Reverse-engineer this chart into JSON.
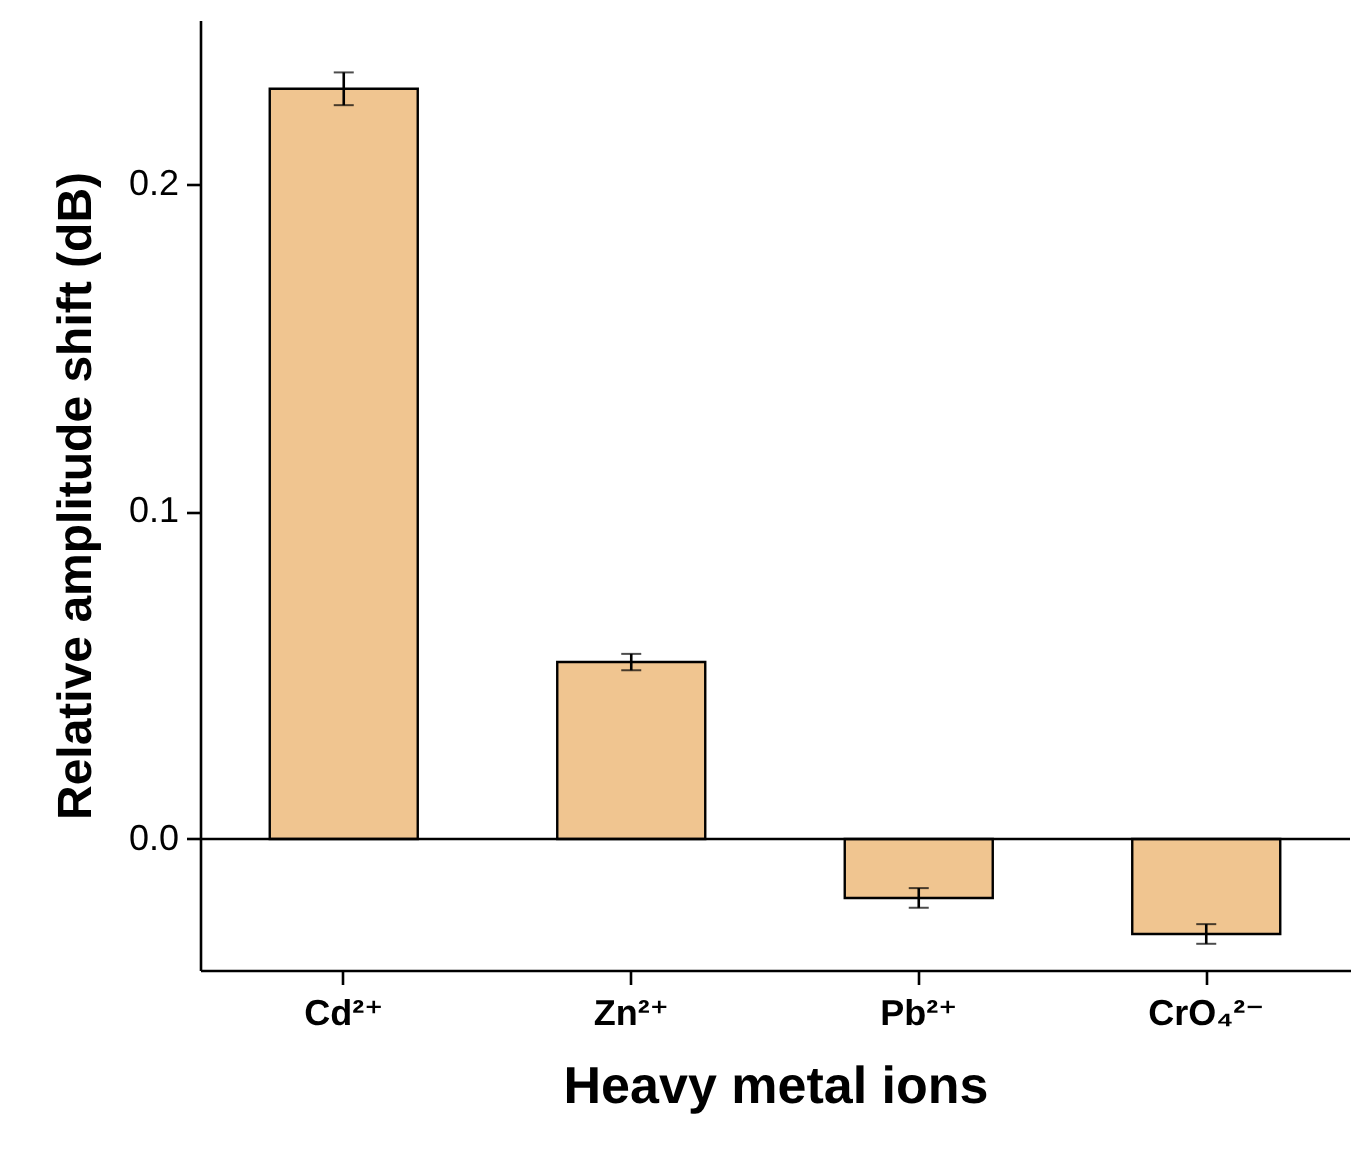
{
  "chart_data": {
    "type": "bar",
    "xlabel": "Heavy metal ions",
    "ylabel": "Relative amplitude shift (dB)",
    "categories": [
      "Cd²⁺",
      "Zn²⁺",
      "Pb²⁺",
      "CrO₄²⁻"
    ],
    "values": [
      0.229,
      0.054,
      -0.018,
      -0.029
    ],
    "errors": [
      0.005,
      0.0025,
      0.003,
      0.003
    ],
    "color": "#f0c590",
    "ylim": [
      -0.04,
      0.25
    ],
    "yticks": [
      {
        "value": 0,
        "label": "0.0"
      },
      0.1,
      0.2
    ],
    "ref_lines": [
      {
        "axis": "y",
        "value": 0
      }
    ],
    "grid": false
  }
}
